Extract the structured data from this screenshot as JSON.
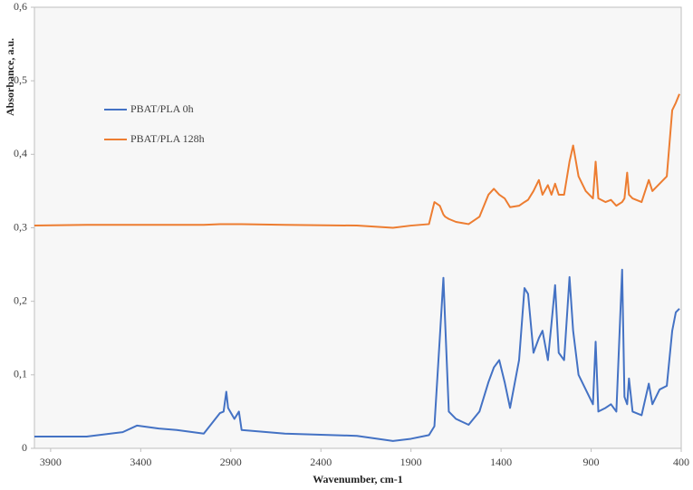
{
  "chart_data": {
    "type": "line",
    "xlabel": "Wavenumber, cm-1",
    "ylabel": "Absorbance, a.u.",
    "x": [
      3990,
      3700,
      3500,
      3420,
      3300,
      3200,
      3050,
      2960,
      2940,
      2925,
      2915,
      2880,
      2855,
      2840,
      2600,
      2200,
      2000,
      1900,
      1800,
      1770,
      1740,
      1720,
      1710,
      1690,
      1650,
      1580,
      1520,
      1470,
      1440,
      1410,
      1380,
      1350,
      1300,
      1270,
      1250,
      1220,
      1190,
      1170,
      1140,
      1120,
      1100,
      1080,
      1050,
      1020,
      1000,
      970,
      930,
      890,
      875,
      860,
      820,
      790,
      760,
      728,
      715,
      700,
      690,
      670,
      620,
      580,
      560,
      520,
      480,
      450,
      430,
      410
    ],
    "series": [
      {
        "name": "PBAT/PLA 0h",
        "color": "#4472c4",
        "values": [
          0.016,
          0.016,
          0.022,
          0.031,
          0.027,
          0.025,
          0.02,
          0.048,
          0.05,
          0.077,
          0.055,
          0.04,
          0.05,
          0.025,
          0.02,
          0.017,
          0.01,
          0.013,
          0.018,
          0.03,
          0.15,
          0.232,
          0.17,
          0.05,
          0.04,
          0.032,
          0.05,
          0.09,
          0.11,
          0.12,
          0.09,
          0.055,
          0.12,
          0.218,
          0.21,
          0.13,
          0.15,
          0.16,
          0.12,
          0.17,
          0.222,
          0.13,
          0.12,
          0.233,
          0.16,
          0.1,
          0.08,
          0.06,
          0.145,
          0.05,
          0.055,
          0.06,
          0.05,
          0.243,
          0.07,
          0.06,
          0.095,
          0.05,
          0.045,
          0.088,
          0.06,
          0.08,
          0.085,
          0.16,
          0.185,
          0.19
        ]
      },
      {
        "name": "PBAT/PLA 128h",
        "color": "#ed7d31",
        "values": [
          0.303,
          0.304,
          0.304,
          0.304,
          0.304,
          0.304,
          0.304,
          0.305,
          0.305,
          0.305,
          0.305,
          0.305,
          0.305,
          0.305,
          0.304,
          0.303,
          0.3,
          0.303,
          0.305,
          0.335,
          0.33,
          0.318,
          0.315,
          0.312,
          0.308,
          0.305,
          0.315,
          0.345,
          0.353,
          0.345,
          0.34,
          0.328,
          0.33,
          0.335,
          0.338,
          0.35,
          0.365,
          0.345,
          0.358,
          0.345,
          0.36,
          0.345,
          0.345,
          0.39,
          0.412,
          0.37,
          0.35,
          0.34,
          0.39,
          0.34,
          0.335,
          0.338,
          0.33,
          0.335,
          0.34,
          0.375,
          0.345,
          0.34,
          0.335,
          0.365,
          0.35,
          0.36,
          0.37,
          0.46,
          0.47,
          0.482
        ]
      }
    ],
    "xlim": [
      3990,
      400
    ],
    "xticks": [
      3900,
      3400,
      2900,
      2400,
      1900,
      1400,
      900,
      400
    ],
    "ylim": [
      0,
      0.6
    ],
    "yticks": [
      0,
      {
        "value": 0.1,
        "label": "0,1"
      },
      {
        "value": 0.2,
        "label": "0,2"
      },
      {
        "value": 0.3,
        "label": "0,3"
      },
      {
        "value": 0.4,
        "label": "0,4"
      },
      {
        "value": 0.5,
        "label": "0,5"
      },
      {
        "value": 0.6,
        "label": "0,6"
      }
    ],
    "grid": false,
    "legend": "upper-left"
  }
}
